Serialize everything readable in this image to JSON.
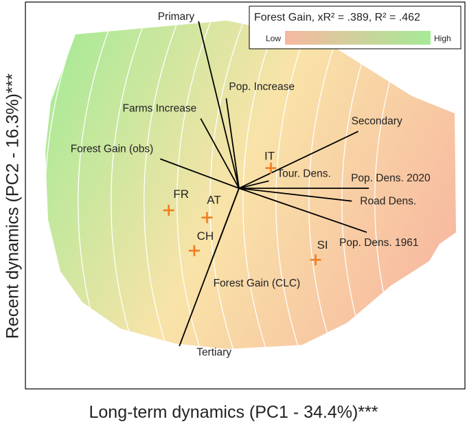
{
  "chart_data": {
    "type": "scatter",
    "subtype": "pca-biplot-with-contour-surface",
    "xlabel": "Long-term dynamics (PC1 - 34.4%)***",
    "ylabel": "Recent dynamics (PC2 - 16.3%)***",
    "xlim": [
      -1,
      1
    ],
    "ylim": [
      -1,
      1
    ],
    "grid": false,
    "legend": {
      "placement": "top-right",
      "title": "Forest Gain, xR² = .389, R² = .462",
      "low_label": "Low",
      "high_label": "High",
      "low_color": "#f7b8a0",
      "high_color": "#a5ea96"
    },
    "surface": {
      "variable": "Forest Gain",
      "high_color": "#a5ea96",
      "mid_color": "#f9e3a8",
      "low_color": "#f7b8a0",
      "contour_color": "#ffffff",
      "contour_count": 12
    },
    "points": [
      {
        "label": "IT",
        "x": 0.15,
        "y": 0.11
      },
      {
        "label": "FR",
        "x": -0.33,
        "y": -0.12
      },
      {
        "label": "AT",
        "x": -0.15,
        "y": -0.16
      },
      {
        "label": "CH",
        "x": -0.21,
        "y": -0.34
      },
      {
        "label": "SI",
        "x": 0.36,
        "y": -0.39
      }
    ],
    "point_color": "#f07d1e",
    "loadings": [
      {
        "label": "Primary",
        "x": -0.19,
        "y": 0.91
      },
      {
        "label": "Pop. Increase",
        "x": -0.06,
        "y": 0.49
      },
      {
        "label": "Farms Increase",
        "x": -0.18,
        "y": 0.38
      },
      {
        "label": "Forest Gain (obs)",
        "x": -0.37,
        "y": 0.16
      },
      {
        "label": "Secondary",
        "x": 0.56,
        "y": 0.31
      },
      {
        "label": "Tour. Dens.",
        "x": 0.14,
        "y": 0.04
      },
      {
        "label": "Pop. Dens. 2020",
        "x": 0.61,
        "y": 0.0
      },
      {
        "label": "Road Dens.",
        "x": 0.53,
        "y": -0.07
      },
      {
        "label": "Pop. Dens. 1961",
        "x": 0.6,
        "y": -0.24
      },
      {
        "label": "Forest Gain (CLC)",
        "x": -0.14,
        "y": -0.43
      },
      {
        "label": "Tertiary",
        "x": -0.28,
        "y": -0.86
      }
    ],
    "loading_color": "#000000"
  }
}
